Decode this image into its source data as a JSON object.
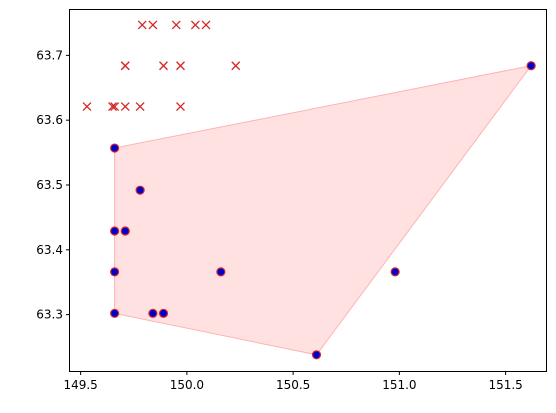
{
  "chart_data": {
    "type": "scatter",
    "title": "",
    "xlabel": "",
    "ylabel": "",
    "xlim": [
      149.45,
      151.69
    ],
    "ylim": [
      63.213,
      63.77
    ],
    "grid": false,
    "x_ticks": [
      149.5,
      150.0,
      150.5,
      151.0,
      151.5
    ],
    "x_tick_labels": [
      "149.5",
      "150.0",
      "150.5",
      "151.0",
      "151.5"
    ],
    "y_ticks": [
      63.3,
      63.4,
      63.5,
      63.6,
      63.7
    ],
    "y_tick_labels": [
      "63.3",
      "63.4",
      "63.5",
      "63.6",
      "63.7"
    ],
    "series": [
      {
        "marker": "x",
        "color": "#d62728",
        "points": [
          [
            149.79,
            63.747
          ],
          [
            149.84,
            63.747
          ],
          [
            149.95,
            63.747
          ],
          [
            150.04,
            63.747
          ],
          [
            150.09,
            63.747
          ],
          [
            149.71,
            63.684
          ],
          [
            149.71,
            63.684
          ],
          [
            149.89,
            63.684
          ],
          [
            149.97,
            63.684
          ],
          [
            150.23,
            63.684
          ],
          [
            149.53,
            63.621
          ],
          [
            149.65,
            63.621
          ],
          [
            149.66,
            63.621
          ],
          [
            149.71,
            63.621
          ],
          [
            149.78,
            63.621
          ],
          [
            149.97,
            63.621
          ]
        ]
      },
      {
        "marker": "o",
        "color": "#0000cc",
        "edgecolor": "#d62728",
        "points": [
          [
            151.62,
            63.684
          ],
          [
            149.66,
            63.557
          ],
          [
            149.78,
            63.492
          ],
          [
            149.66,
            63.429
          ],
          [
            149.71,
            63.429
          ],
          [
            149.66,
            63.366
          ],
          [
            150.16,
            63.366
          ],
          [
            150.98,
            63.366
          ],
          [
            149.66,
            63.302
          ],
          [
            149.84,
            63.302
          ],
          [
            149.89,
            63.302
          ],
          [
            150.61,
            63.238
          ]
        ]
      }
    ],
    "hull": {
      "fill": "#ffb3b3",
      "fill_opacity": 0.4,
      "vertices": [
        [
          149.66,
          63.557
        ],
        [
          151.62,
          63.684
        ],
        [
          150.61,
          63.238
        ],
        [
          149.66,
          63.302
        ]
      ]
    }
  }
}
